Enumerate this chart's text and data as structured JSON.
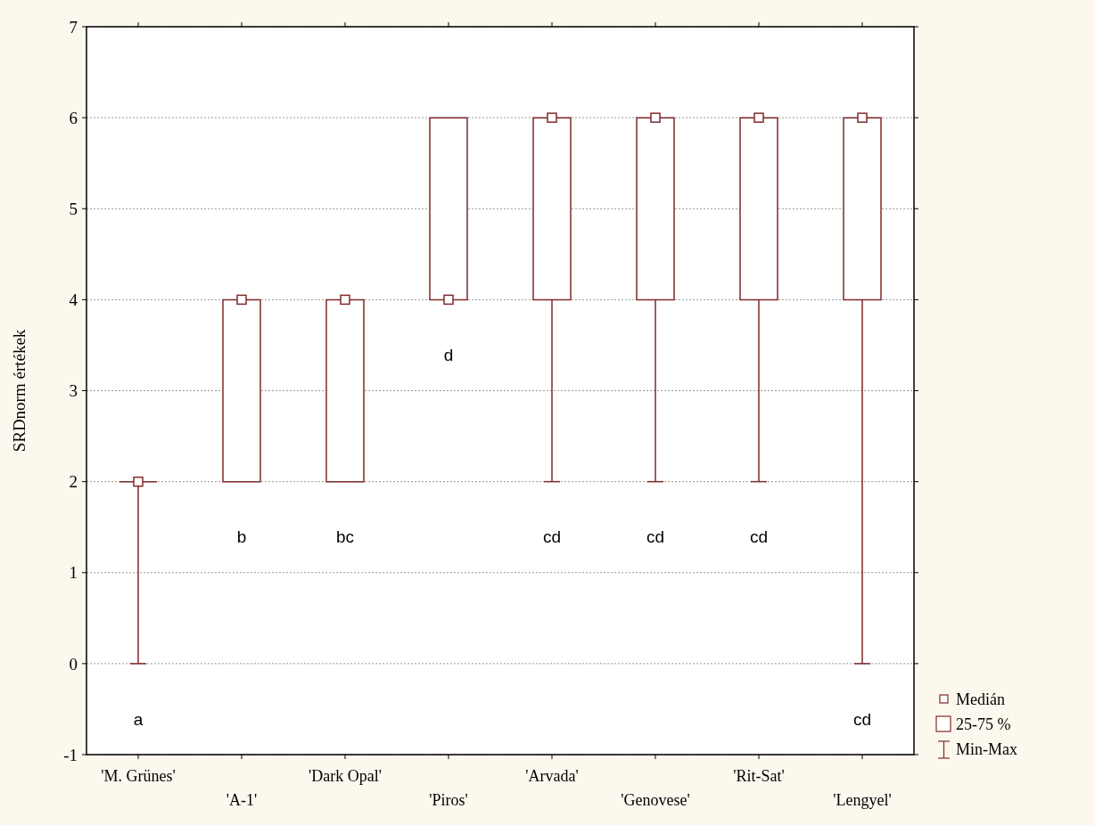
{
  "chart_data": {
    "type": "box",
    "ylabel": "SRDnorm értékek",
    "categories": [
      "'M. Grünes'",
      "'A-1'",
      "'Dark Opal'",
      "'Piros'",
      "'Arvada'",
      "'Genovese'",
      "'Rit-Sat'",
      "'Lengyel'"
    ],
    "series": [
      {
        "color": "#7f2a2a",
        "boxes": [
          {
            "low": 0,
            "q1": 2,
            "median": 2,
            "q3": 2,
            "high": 2
          },
          {
            "low": 2,
            "q1": 2,
            "median": 4,
            "q3": 4,
            "high": 4
          },
          {
            "low": 2,
            "q1": 2,
            "median": 4,
            "q3": 4,
            "high": 4
          },
          {
            "low": 4,
            "q1": 4,
            "median": 4,
            "q3": 6,
            "high": 6
          },
          {
            "low": 2,
            "q1": 4,
            "median": 6,
            "q3": 6,
            "high": 6
          },
          {
            "low": 2,
            "q1": 4,
            "median": 6,
            "q3": 6,
            "high": 6
          },
          {
            "low": 2,
            "q1": 4,
            "median": 6,
            "q3": 6,
            "high": 6
          },
          {
            "low": 0,
            "q1": 4,
            "median": 6,
            "q3": 6,
            "high": 6
          }
        ]
      }
    ],
    "ylim": [
      -1,
      7
    ],
    "yticks": [
      -1,
      0,
      1,
      2,
      3,
      4,
      5,
      6,
      7
    ],
    "grid": "y",
    "annotations": [
      "a",
      "b",
      "bc",
      "d",
      "cd",
      "cd",
      "cd",
      "cd",
      "Medián",
      "25-75 %",
      "Min-Max"
    ]
  }
}
